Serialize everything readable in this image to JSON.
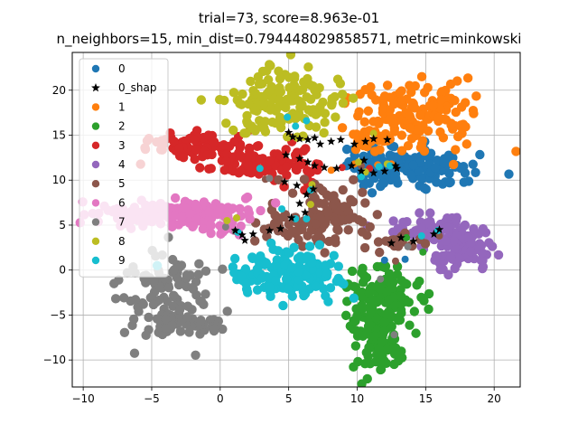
{
  "chart_data": {
    "type": "scatter",
    "title": "trial=73, score=8.963e-01",
    "subtitle": "n_neighbors=15, min_dist=0.794448029858571, metric=minkowski",
    "xlabel": "",
    "ylabel": "",
    "xlim": [
      -10.8,
      21.9
    ],
    "ylim": [
      -13.0,
      24.2
    ],
    "xticks": [
      -10,
      -5,
      0,
      5,
      10,
      15,
      20
    ],
    "yticks": [
      -10,
      -5,
      0,
      5,
      10,
      15,
      20
    ],
    "grid": true,
    "legend_position": "upper left",
    "colors": {
      "0": "#1f77b4",
      "1": "#ff7f0e",
      "2": "#2ca02c",
      "3": "#d62728",
      "4": "#9467bd",
      "5": "#8c564b",
      "6": "#e377c2",
      "7": "#7f7f7f",
      "8": "#bcbd22",
      "9": "#17becf",
      "0_shap": "#000000"
    },
    "series": [
      {
        "name": "0",
        "clusters": [
          {
            "cx": 13.8,
            "cy": 11.3,
            "sx": 2.2,
            "sy": 1.1,
            "n": 140
          },
          {
            "cx": 11.0,
            "cy": 11.1,
            "sx": 0.8,
            "sy": 0.7,
            "n": 30
          }
        ],
        "points": [
          [
            12.0,
            1.1
          ],
          [
            13.5,
            1.2
          ],
          [
            10.2,
            11.0
          ],
          [
            11.3,
            10.1
          ]
        ]
      },
      {
        "name": "0_shap",
        "marker": "star",
        "points": [
          [
            5.0,
            15.3
          ],
          [
            5.3,
            14.8
          ],
          [
            5.8,
            14.6
          ],
          [
            6.4,
            14.5
          ],
          [
            6.9,
            14.7
          ],
          [
            7.3,
            14.0
          ],
          [
            8.1,
            14.3
          ],
          [
            8.8,
            14.5
          ],
          [
            9.8,
            14.0
          ],
          [
            10.6,
            14.3
          ],
          [
            11.2,
            14.6
          ],
          [
            12.2,
            14.5
          ],
          [
            4.8,
            12.8
          ],
          [
            5.8,
            12.4
          ],
          [
            6.4,
            12.0
          ],
          [
            6.9,
            11.6
          ],
          [
            7.6,
            11.4
          ],
          [
            8.5,
            11.3
          ],
          [
            9.6,
            11.6
          ],
          [
            10.3,
            11.0
          ],
          [
            11.2,
            10.8
          ],
          [
            12.0,
            11.0
          ],
          [
            12.9,
            11.3
          ],
          [
            4.7,
            9.8
          ],
          [
            5.6,
            9.4
          ],
          [
            6.3,
            8.4
          ],
          [
            6.8,
            9.0
          ],
          [
            5.8,
            7.4
          ],
          [
            6.2,
            6.4
          ],
          [
            5.2,
            5.8
          ],
          [
            4.4,
            4.6
          ],
          [
            3.6,
            4.4
          ],
          [
            2.4,
            4.0
          ],
          [
            1.8,
            3.3
          ],
          [
            1.6,
            3.9
          ],
          [
            1.1,
            4.4
          ],
          [
            12.5,
            3.0
          ],
          [
            13.2,
            3.6
          ],
          [
            14.1,
            3.2
          ],
          [
            15.6,
            4.0
          ],
          [
            16.0,
            4.5
          ],
          [
            12.8,
            11.6
          ],
          [
            10.5,
            12.2
          ]
        ]
      },
      {
        "name": "1",
        "clusters": [
          {
            "cx": 14.6,
            "cy": 17.3,
            "sx": 2.2,
            "sy": 1.8,
            "n": 150
          },
          {
            "cx": 11.5,
            "cy": 14.6,
            "sx": 1.0,
            "sy": 0.8,
            "n": 25
          }
        ],
        "points": [
          [
            10.2,
            14.0
          ],
          [
            9.8,
            11.8
          ],
          [
            11.5,
            11.7
          ],
          [
            12.5,
            11.8
          ],
          [
            8.1,
            11.1
          ]
        ]
      },
      {
        "name": "2",
        "clusters": [
          {
            "cx": 11.5,
            "cy": -6.0,
            "sx": 1.0,
            "sy": 2.8,
            "n": 170
          },
          {
            "cx": 12.8,
            "cy": -2.5,
            "sx": 0.9,
            "sy": 1.6,
            "n": 50
          }
        ],
        "points": [
          [
            14.8,
            2.0
          ],
          [
            13.6,
            3.6
          ],
          [
            12.9,
            0.6
          ]
        ]
      },
      {
        "name": "3",
        "clusters": [
          {
            "cx": -1.5,
            "cy": 14.0,
            "sx": 1.9,
            "sy": 0.8,
            "n": 80
          },
          {
            "cx": 2.8,
            "cy": 12.2,
            "sx": 1.8,
            "sy": 0.9,
            "n": 80
          },
          {
            "cx": 5.5,
            "cy": 11.0,
            "sx": 0.9,
            "sy": 0.8,
            "n": 25
          }
        ],
        "points": [
          [
            10.9,
            11.3
          ],
          [
            8.9,
            11.4
          ]
        ]
      },
      {
        "name": "4",
        "clusters": [
          {
            "cx": 17.4,
            "cy": 2.5,
            "sx": 1.3,
            "sy": 1.3,
            "n": 110
          },
          {
            "cx": 15.0,
            "cy": 4.8,
            "sx": 1.5,
            "sy": 0.6,
            "n": 40
          }
        ],
        "points": []
      },
      {
        "name": "5",
        "clusters": [
          {
            "cx": 7.8,
            "cy": 6.3,
            "sx": 1.3,
            "sy": 1.5,
            "n": 90
          },
          {
            "cx": 5.4,
            "cy": 4.9,
            "sx": 1.3,
            "sy": 0.9,
            "n": 45
          },
          {
            "cx": 13.0,
            "cy": 3.0,
            "sx": 0.8,
            "sy": 0.4,
            "n": 20
          }
        ],
        "points": [
          [
            16.0,
            3.8
          ],
          [
            3.3,
            10.1
          ],
          [
            12.8,
            1.0
          ],
          [
            10.3,
            11.6
          ]
        ]
      },
      {
        "name": "6",
        "clusters": [
          {
            "cx": -3.8,
            "cy": 6.4,
            "sx": 3.0,
            "sy": 0.7,
            "n": 170
          },
          {
            "cx": 0.0,
            "cy": 4.6,
            "sx": 0.8,
            "sy": 0.5,
            "n": 20
          }
        ],
        "points": []
      },
      {
        "name": "7",
        "clusters": [
          {
            "cx": -4.3,
            "cy": -2.8,
            "sx": 1.5,
            "sy": 2.6,
            "n": 90
          },
          {
            "cx": -2.0,
            "cy": -5.8,
            "sx": 1.4,
            "sy": 0.8,
            "n": 35
          },
          {
            "cx": -2.5,
            "cy": -0.2,
            "sx": 1.0,
            "sy": 0.5,
            "n": 15
          }
        ],
        "points": [
          [
            3.6,
            10.2
          ],
          [
            1.1,
            4.3
          ],
          [
            11.7,
            -1.0
          ],
          [
            13.7,
            2.6
          ],
          [
            12.7,
            -7.2
          ],
          [
            0.4,
            4.8
          ]
        ]
      },
      {
        "name": "8",
        "clusters": [
          {
            "cx": 4.5,
            "cy": 18.7,
            "sx": 2.3,
            "sy": 1.8,
            "n": 150
          }
        ],
        "points": [
          [
            11.2,
            15.2
          ],
          [
            0.5,
            5.5
          ],
          [
            1.2,
            5.8
          ],
          [
            10.1,
            12.0
          ],
          [
            10.6,
            10.9
          ],
          [
            12.2,
            11.8
          ],
          [
            6.6,
            7.3
          ],
          [
            6.7,
            9.5
          ]
        ]
      },
      {
        "name": "9",
        "clusters": [
          {
            "cx": 5.0,
            "cy": -0.5,
            "sx": 2.0,
            "sy": 1.3,
            "n": 160
          }
        ],
        "points": [
          [
            4.9,
            17.0
          ],
          [
            6.3,
            16.6
          ],
          [
            5.5,
            16.0
          ],
          [
            6.3,
            5.7
          ],
          [
            6.6,
            8.9
          ],
          [
            5.5,
            5.7
          ],
          [
            2.9,
            11.3
          ],
          [
            10.3,
            10.4
          ],
          [
            11.6,
            11.5
          ],
          [
            14.7,
            3.8
          ],
          [
            15.9,
            4.4
          ],
          [
            1.3,
            4.2
          ],
          [
            4.5,
            6.8
          ],
          [
            12.4,
            11.6
          ]
        ]
      }
    ]
  }
}
